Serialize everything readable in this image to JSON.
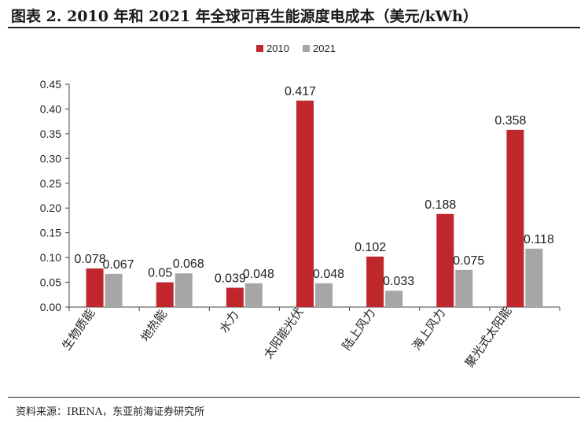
{
  "header": {
    "title": "图表 2.  2010 年和 2021 年全球可再生能源度电成本（美元/kWh）"
  },
  "footer": {
    "source": "资料来源：IRENA，东亚前海证券研究所"
  },
  "chart_data": {
    "type": "bar",
    "categories": [
      "生物质能",
      "地热能",
      "水力",
      "太阳能光伏",
      "陆上风力",
      "海上风力",
      "聚光式太阳能"
    ],
    "series": [
      {
        "name": "2010",
        "color": "#c0272d",
        "values": [
          0.078,
          0.05,
          0.039,
          0.417,
          0.102,
          0.188,
          0.358
        ],
        "labels": [
          "0.078",
          "0.05",
          "0.039",
          "0.417",
          "0.102",
          "0.188",
          "0.358"
        ]
      },
      {
        "name": "2021",
        "color": "#a6a6a6",
        "values": [
          0.067,
          0.068,
          0.048,
          0.048,
          0.033,
          0.075,
          0.118
        ],
        "labels": [
          "0.067",
          "0.068",
          "0.048",
          "0.048",
          "0.033",
          "0.075",
          "0.118"
        ]
      }
    ],
    "ylim": [
      0,
      0.45
    ],
    "yticks": [
      "0.00",
      "0.05",
      "0.10",
      "0.15",
      "0.20",
      "0.25",
      "0.30",
      "0.35",
      "0.40",
      "0.45"
    ],
    "legend_position": "top-center",
    "grid": false
  }
}
